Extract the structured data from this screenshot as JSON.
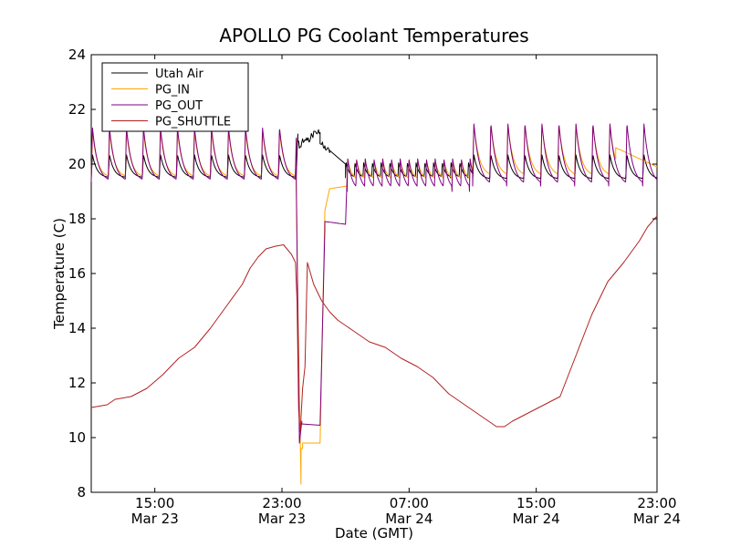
{
  "chart_data": {
    "type": "line",
    "title": "APOLLO PG Coolant Temperatures",
    "xlabel": "Date (GMT)",
    "ylabel": "Temperature (C)",
    "x_unit": "hours since Mar 23 00:00 GMT",
    "xlim": [
      11.0,
      46.6
    ],
    "ylim": [
      8,
      24
    ],
    "y_ticks": [
      8,
      10,
      12,
      14,
      16,
      18,
      20,
      22,
      24
    ],
    "x_ticks": [
      {
        "value": 15,
        "time": "15:00",
        "date": "Mar 23"
      },
      {
        "value": 23,
        "time": "23:00",
        "date": "Mar 23"
      },
      {
        "value": 31,
        "time": "07:00",
        "date": "Mar 24"
      },
      {
        "value": 39,
        "time": "15:00",
        "date": "Mar 24"
      },
      {
        "value": 47,
        "time": "23:00",
        "date": "Mar 24"
      }
    ],
    "grid": false,
    "legend_position": "top-left",
    "series": [
      {
        "name": "Utah Air",
        "color": "#000000",
        "generator": {
          "segments": [
            {
              "x0": 11.0,
              "x1": 23.9,
              "kind": "saw",
              "period": 1.07,
              "base": 19.5,
              "amp": 0.85,
              "decay": 3.5
            },
            {
              "x0": 23.9,
              "x1": 24.0,
              "kind": "linear",
              "y0": 19.6,
              "y1": 21.1
            },
            {
              "x0": 24.0,
              "x1": 25.4,
              "kind": "noisy",
              "y0": 20.7,
              "y1": 21.2,
              "noise": 0.15
            },
            {
              "x0": 25.4,
              "x1": 26.0,
              "kind": "noisy",
              "y0": 20.8,
              "y1": 20.5,
              "noise": 0.12
            },
            {
              "x0": 26.0,
              "x1": 27.0,
              "kind": "linear",
              "y0": 20.5,
              "y1": 20.0
            },
            {
              "x0": 27.0,
              "x1": 35.0,
              "kind": "saw",
              "period": 0.55,
              "base": 19.5,
              "amp": 0.55,
              "decay": 2.5
            },
            {
              "x0": 35.0,
              "x1": 46.6,
              "kind": "saw",
              "period": 1.07,
              "base": 19.45,
              "amp": 0.9,
              "decay": 3.5
            }
          ]
        }
      },
      {
        "name": "PG_IN",
        "color": "#ffa500",
        "generator": {
          "segments": [
            {
              "x0": 11.0,
              "x1": 23.9,
              "kind": "saw",
              "period": 1.07,
              "base": 19.5,
              "amp": 1.7,
              "decay": 3.2
            },
            {
              "x0": 23.9,
              "x1": 24.0,
              "kind": "linear",
              "y0": 19.6,
              "y1": 15.0
            },
            {
              "x0": 24.0,
              "x1": 24.2,
              "kind": "linear",
              "y0": 15.0,
              "y1": 8.3
            },
            {
              "x0": 24.2,
              "x1": 24.3,
              "kind": "linear",
              "y0": 9.6,
              "y1": 9.6
            },
            {
              "x0": 24.3,
              "x1": 25.4,
              "kind": "linear",
              "y0": 9.8,
              "y1": 9.8
            },
            {
              "x0": 25.4,
              "x1": 25.7,
              "kind": "linear",
              "y0": 9.8,
              "y1": 18.3
            },
            {
              "x0": 25.7,
              "x1": 26.0,
              "kind": "linear",
              "y0": 18.3,
              "y1": 19.1
            },
            {
              "x0": 26.0,
              "x1": 27.1,
              "kind": "linear",
              "y0": 19.1,
              "y1": 19.2
            },
            {
              "x0": 27.1,
              "x1": 35.0,
              "kind": "saw",
              "period": 0.55,
              "base": 19.4,
              "amp": 0.75,
              "decay": 2.0
            },
            {
              "x0": 35.0,
              "x1": 44.0,
              "kind": "saw",
              "period": 1.07,
              "base": 19.55,
              "amp": 1.9,
              "decay": 3.0
            },
            {
              "x0": 44.0,
              "x1": 46.6,
              "kind": "linear",
              "y0": 20.6,
              "y1": 19.9
            }
          ]
        }
      },
      {
        "name": "PG_OUT",
        "color": "#800080",
        "generator": {
          "segments": [
            {
              "x0": 11.0,
              "x1": 23.9,
              "kind": "saw",
              "period": 1.07,
              "base": 19.35,
              "amp": 2.0,
              "decay": 3.0
            },
            {
              "x0": 23.9,
              "x1": 24.1,
              "kind": "linear",
              "y0": 19.3,
              "y1": 9.8
            },
            {
              "x0": 24.1,
              "x1": 24.25,
              "kind": "linear",
              "y0": 9.8,
              "y1": 10.6
            },
            {
              "x0": 24.25,
              "x1": 25.4,
              "kind": "linear",
              "y0": 10.5,
              "y1": 10.45
            },
            {
              "x0": 25.4,
              "x1": 25.7,
              "kind": "linear",
              "y0": 10.45,
              "y1": 17.6
            },
            {
              "x0": 25.7,
              "x1": 27.0,
              "kind": "linear",
              "y0": 17.9,
              "y1": 17.8
            },
            {
              "x0": 27.0,
              "x1": 27.1,
              "kind": "linear",
              "y0": 17.8,
              "y1": 19.5
            },
            {
              "x0": 27.1,
              "x1": 35.0,
              "kind": "saw",
              "period": 0.55,
              "base": 19.0,
              "amp": 1.2,
              "decay": 1.8
            },
            {
              "x0": 35.0,
              "x1": 46.6,
              "kind": "saw",
              "period": 1.07,
              "base": 19.2,
              "amp": 2.3,
              "decay": 2.8
            }
          ]
        }
      },
      {
        "name": "PG_SHUTTLE",
        "color": "#b22222",
        "points": [
          [
            11.0,
            11.1
          ],
          [
            11.5,
            11.15
          ],
          [
            12.0,
            11.2
          ],
          [
            12.5,
            11.4
          ],
          [
            13.5,
            11.5
          ],
          [
            14.5,
            11.8
          ],
          [
            15.5,
            12.3
          ],
          [
            16.5,
            12.9
          ],
          [
            17.5,
            13.3
          ],
          [
            18.5,
            14.0
          ],
          [
            19.5,
            14.8
          ],
          [
            20.5,
            15.6
          ],
          [
            21.0,
            16.2
          ],
          [
            21.5,
            16.6
          ],
          [
            22.0,
            16.9
          ],
          [
            22.6,
            17.0
          ],
          [
            23.1,
            17.05
          ],
          [
            23.6,
            16.7
          ],
          [
            23.85,
            16.4
          ],
          [
            23.95,
            15.0
          ],
          [
            24.05,
            11.0
          ],
          [
            24.15,
            10.2
          ],
          [
            24.3,
            11.8
          ],
          [
            24.45,
            12.6
          ],
          [
            24.6,
            16.4
          ],
          [
            25.0,
            15.6
          ],
          [
            25.5,
            15.0
          ],
          [
            26.0,
            14.6
          ],
          [
            26.5,
            14.3
          ],
          [
            27.5,
            13.9
          ],
          [
            28.5,
            13.5
          ],
          [
            29.5,
            13.3
          ],
          [
            30.5,
            12.9
          ],
          [
            31.5,
            12.6
          ],
          [
            32.5,
            12.2
          ],
          [
            33.5,
            11.6
          ],
          [
            34.5,
            11.2
          ],
          [
            35.5,
            10.8
          ],
          [
            36.5,
            10.4
          ],
          [
            37.0,
            10.4
          ],
          [
            37.5,
            10.6
          ],
          [
            38.5,
            10.9
          ],
          [
            39.5,
            11.2
          ],
          [
            40.5,
            11.5
          ],
          [
            41.5,
            13.0
          ],
          [
            42.5,
            14.5
          ],
          [
            43.5,
            15.7
          ],
          [
            44.5,
            16.4
          ],
          [
            45.5,
            17.2
          ],
          [
            46.0,
            17.7
          ],
          [
            46.6,
            18.1
          ]
        ]
      }
    ]
  }
}
